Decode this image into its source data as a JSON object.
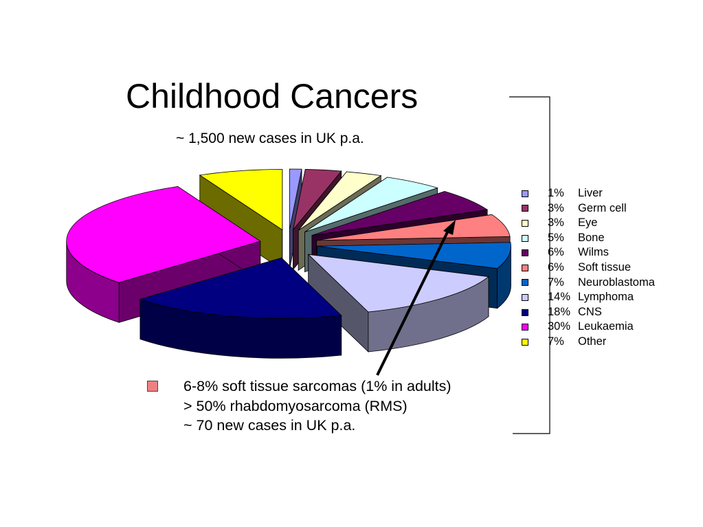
{
  "title": "Childhood Cancers",
  "subtitle": "~ 1,500 new cases in UK p.a.",
  "chart_data": {
    "type": "pie",
    "title": "Childhood Cancers",
    "subtitle": "~ 1,500 new cases in UK p.a.",
    "exploded": true,
    "three_d": true,
    "legend_position": "right",
    "slices": [
      {
        "label": "Liver",
        "pct_label": "1%",
        "value": 1,
        "color": "#9999ff"
      },
      {
        "label": "Germ cell",
        "pct_label": "3%",
        "value": 3,
        "color": "#993366"
      },
      {
        "label": "Eye",
        "pct_label": "3%",
        "value": 3,
        "color": "#ffffcc"
      },
      {
        "label": "Bone",
        "pct_label": "5%",
        "value": 5,
        "color": "#ccffff"
      },
      {
        "label": "Wilms",
        "pct_label": "6%",
        "value": 6,
        "color": "#660066"
      },
      {
        "label": "Soft tissue",
        "pct_label": "6%",
        "value": 6,
        "color": "#ff8080"
      },
      {
        "label": "Neuroblastoma",
        "pct_label": "7%",
        "value": 7,
        "color": "#0066cc"
      },
      {
        "label": "Lymphoma",
        "pct_label": "14%",
        "value": 14,
        "color": "#ccccff"
      },
      {
        "label": "CNS",
        "pct_label": "18%",
        "value": 18,
        "color": "#000080"
      },
      {
        "label": "Leukaemia",
        "pct_label": "30%",
        "value": 30,
        "color": "#ff00ff"
      },
      {
        "label": "Other",
        "pct_label": "7%",
        "value": 7,
        "color": "#ffff00"
      }
    ]
  },
  "note": {
    "bullet_color": "#f08080",
    "lines": [
      "6-8% soft tissue sarcomas (1% in adults)",
      "> 50% rhabdomyosarcoma (RMS)",
      "~ 70 new cases in UK p.a."
    ]
  }
}
